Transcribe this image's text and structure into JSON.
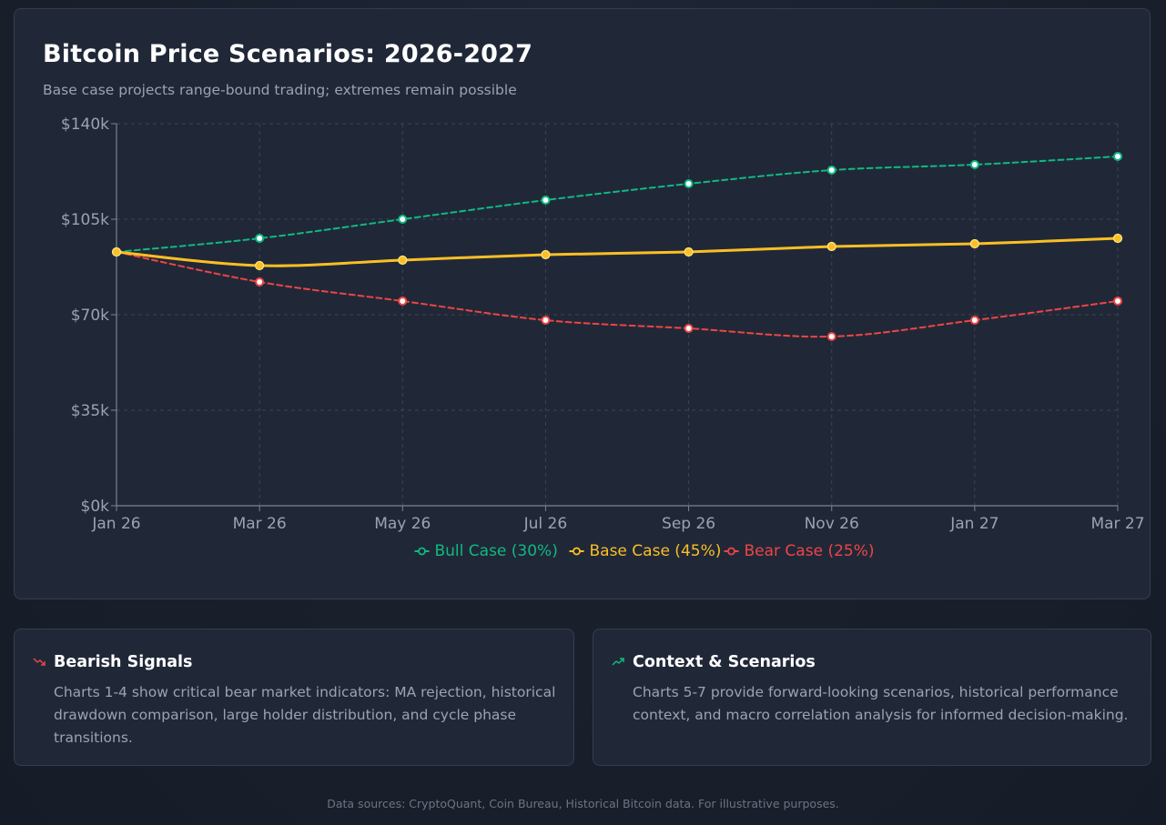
{
  "header": {
    "title": "Bitcoin Price Scenarios: 2026-2027",
    "subtitle": "Base case projects range-bound trading; extremes remain possible"
  },
  "chart_data": {
    "type": "line",
    "categories": [
      "Jan 26",
      "Mar 26",
      "May 26",
      "Jul 26",
      "Sep 26",
      "Nov 26",
      "Jan 27",
      "Mar 27"
    ],
    "y_ticks": [
      0,
      35000,
      70000,
      105000,
      140000
    ],
    "y_tick_labels": [
      "$0k",
      "$35k",
      "$70k",
      "$105k",
      "$140k"
    ],
    "ylim": [
      0,
      140000
    ],
    "grid": true,
    "legend_position": "bottom-center",
    "series": [
      {
        "name": "Bull Case (30%)",
        "values": [
          93000,
          98000,
          105000,
          112000,
          118000,
          123000,
          125000,
          128000
        ],
        "color": "#10b981",
        "style": "dashed"
      },
      {
        "name": "Base Case (45%)",
        "values": [
          93000,
          88000,
          90000,
          92000,
          93000,
          95000,
          96000,
          98000
        ],
        "color": "#fbbf24",
        "style": "solid"
      },
      {
        "name": "Bear Case (25%)",
        "values": [
          93000,
          82000,
          75000,
          68000,
          65000,
          62000,
          68000,
          75000
        ],
        "color": "#ef4444",
        "style": "dashed"
      }
    ]
  },
  "cards": [
    {
      "title": "Bearish Signals",
      "icon": "trending-down-icon",
      "icon_color": "#ef4444",
      "body": "Charts 1-4 show critical bear market indicators: MA rejection, historical drawdown comparison, large holder distribution, and cycle phase transitions."
    },
    {
      "title": "Context & Scenarios",
      "icon": "trending-up-icon",
      "icon_color": "#10b981",
      "body": "Charts 5-7 provide forward-looking scenarios, historical performance context, and macro correlation analysis for informed decision-making."
    }
  ],
  "footer": "Data sources: CryptoQuant, Coin Bureau, Historical Bitcoin data. For illustrative purposes."
}
